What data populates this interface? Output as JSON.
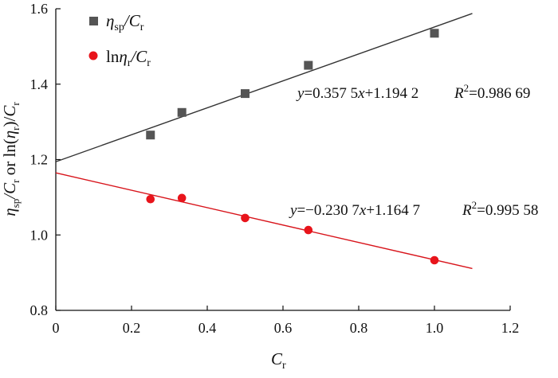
{
  "chart_data": {
    "type": "scatter",
    "xlabel": "C_r",
    "ylabel": "η_sp/C_r or ln(η_r)/C_r",
    "xlim": [
      0,
      1.2
    ],
    "ylim": [
      0.8,
      1.6
    ],
    "x_ticks": [
      "0",
      "0.2",
      "0.4",
      "0.6",
      "0.8",
      "1.0",
      "1.2"
    ],
    "y_ticks": [
      "0.8",
      "1.0",
      "1.2",
      "1.4",
      "1.6"
    ],
    "grid": false,
    "legend_position": "top-left",
    "series": [
      {
        "name": "η_sp/C_r",
        "marker": "square",
        "color": "#555555",
        "points": [
          {
            "x": 0.25,
            "y": 1.265
          },
          {
            "x": 0.333,
            "y": 1.325
          },
          {
            "x": 0.5,
            "y": 1.375
          },
          {
            "x": 0.667,
            "y": 1.45
          },
          {
            "x": 1.0,
            "y": 1.535
          }
        ],
        "fit": {
          "slope": 0.3575,
          "intercept": 1.1942,
          "x_range": [
            0,
            1.1
          ]
        },
        "equation": {
          "y_prefix": "y",
          "rhs": "=0.357 5x+1.194 2",
          "r2_label": "R",
          "r2_value": "=0.986 69"
        }
      },
      {
        "name": "lnη_r/C_r",
        "marker": "circle",
        "color": "#e8141b",
        "points": [
          {
            "x": 0.25,
            "y": 1.095
          },
          {
            "x": 0.333,
            "y": 1.098
          },
          {
            "x": 0.5,
            "y": 1.045
          },
          {
            "x": 0.667,
            "y": 1.013
          },
          {
            "x": 1.0,
            "y": 0.933
          }
        ],
        "fit": {
          "slope": -0.2307,
          "intercept": 1.1647,
          "x_range": [
            0,
            1.1
          ]
        },
        "equation": {
          "y_prefix": "y",
          "rhs": "=−0.230 7x+1.164 7",
          "r2_label": "R",
          "r2_value": "=0.995 58"
        }
      }
    ]
  }
}
